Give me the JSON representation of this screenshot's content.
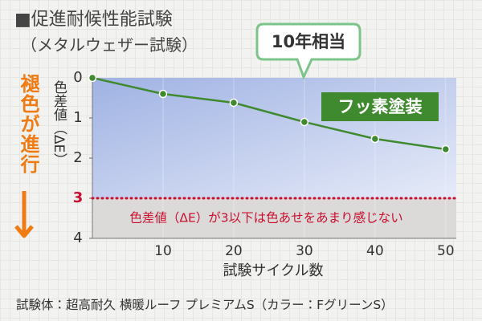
{
  "title": "■促進耐候性能試験",
  "subtitle": "（メタルウェザー試験）",
  "footnote": "試験体：超高耐久 横暖ルーフ プレミアムS（カラー：FグリーンS）",
  "chart_data": {
    "type": "line",
    "callout": "10年相当",
    "side_label": "褪色が進行",
    "x_label": "試験サイクル数",
    "y_label": "色差値（ΔE）",
    "x": [
      0,
      10,
      20,
      30,
      40,
      50
    ],
    "series": [
      {
        "name": "フッ素塗装",
        "color": "#3f8a2f",
        "values": [
          0,
          0.4,
          0.62,
          1.1,
          1.52,
          1.78
        ]
      }
    ],
    "xlim": [
      0,
      51.5
    ],
    "xticks": [
      10,
      20,
      30,
      40,
      50
    ],
    "ylim": [
      0,
      4
    ],
    "yticks": [
      0,
      1,
      2,
      3,
      4
    ],
    "y_inverted": true,
    "threshold": 3,
    "threshold_label": "色差値（ΔE）が3以下は色あせをあまり感じない",
    "threshold_color": "#c8102e"
  }
}
